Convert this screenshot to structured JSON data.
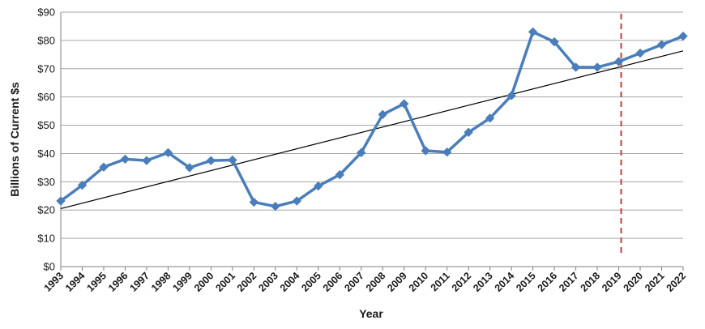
{
  "chart_data": {
    "type": "line",
    "title": "",
    "xlabel": "Year",
    "ylabel": "Billions of Current $s",
    "ylim": [
      0,
      90
    ],
    "y_ticks": [
      0,
      10,
      20,
      30,
      40,
      50,
      60,
      70,
      80,
      90
    ],
    "y_tick_labels": [
      "$0",
      "$10",
      "$20",
      "$30",
      "$40",
      "$50",
      "$60",
      "$70",
      "$80",
      "$90"
    ],
    "grid": "horizontal",
    "legend": "none",
    "categories": [
      "1993",
      "1994",
      "1995",
      "1996",
      "1997",
      "1998",
      "1999",
      "2000",
      "2001",
      "2002",
      "2003",
      "2004",
      "2005",
      "2006",
      "2007",
      "2008",
      "2009",
      "2010",
      "2011",
      "2012",
      "2013",
      "2014",
      "2015",
      "2016",
      "2017",
      "2018",
      "2019",
      "2020",
      "2021",
      "2022"
    ],
    "series": [
      {
        "color": "#4a7ebb",
        "marker": "diamond",
        "values": [
          23.2,
          28.8,
          35.2,
          38.0,
          37.5,
          40.3,
          35.0,
          37.5,
          37.7,
          22.8,
          21.3,
          23.2,
          28.5,
          32.5,
          40.3,
          53.8,
          57.6,
          41.0,
          40.5,
          47.5,
          52.5,
          60.5,
          83.0,
          79.5,
          70.5,
          70.5,
          72.5,
          75.5,
          78.5,
          81.5
        ]
      }
    ],
    "trendline": {
      "color": "#000000",
      "start_value": 20.5,
      "end_value": 76.3
    },
    "reference_line": {
      "x_category": "2019",
      "style": "dashed",
      "color": "#c0504d"
    }
  }
}
